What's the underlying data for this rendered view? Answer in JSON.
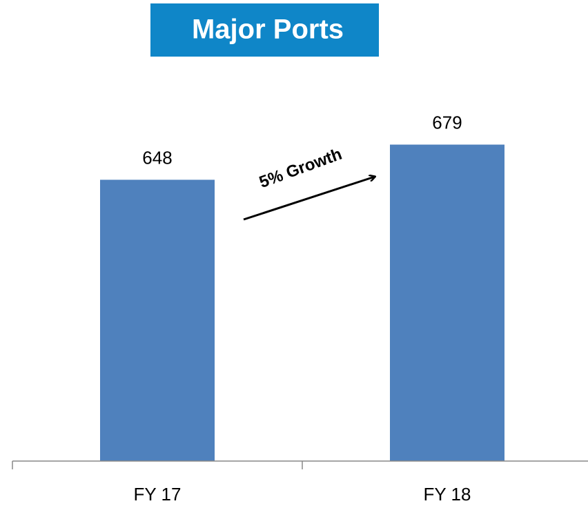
{
  "chart_data": {
    "type": "bar",
    "title": "Major Ports",
    "annotation": "5% Growth",
    "categories": [
      "FY 17",
      "FY 18"
    ],
    "values": [
      648,
      679
    ],
    "color": "#4f81bd",
    "ylim": [
      400,
      700
    ]
  }
}
